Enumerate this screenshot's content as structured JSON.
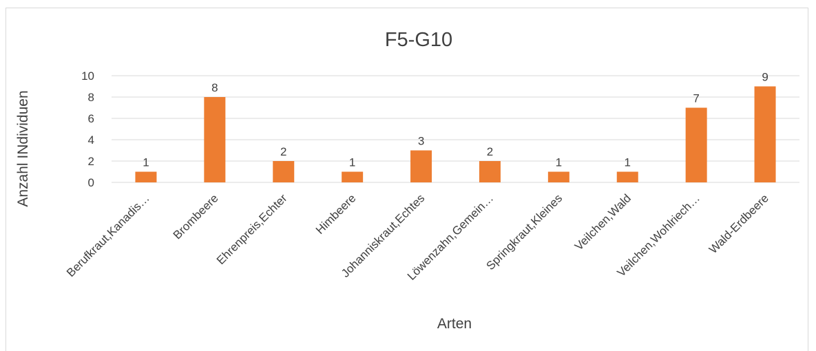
{
  "chart_data": {
    "type": "bar",
    "title": "F5-G10",
    "xlabel": "Arten",
    "ylabel": "Anzahl INdividuen",
    "categories": [
      "Berufkraut,Kanadis…",
      "Brombeere",
      "Ehrenpreis,Echter",
      "Himbeere",
      "Johanniskraut,Echtes",
      "Löwenzahn,Gemein…",
      "Springkraut,Kleines",
      "Veilchen,Wald",
      "Veilchen,Wohlriech…",
      "Wald-Erdbeere"
    ],
    "values": [
      1,
      8,
      2,
      1,
      3,
      2,
      1,
      1,
      7,
      9
    ],
    "ylim": [
      0,
      10
    ],
    "yticks": [
      0,
      2,
      4,
      6,
      8,
      10
    ],
    "grid": true,
    "bar_color": "#ED7D31",
    "grid_color": "#d9d9d9"
  }
}
